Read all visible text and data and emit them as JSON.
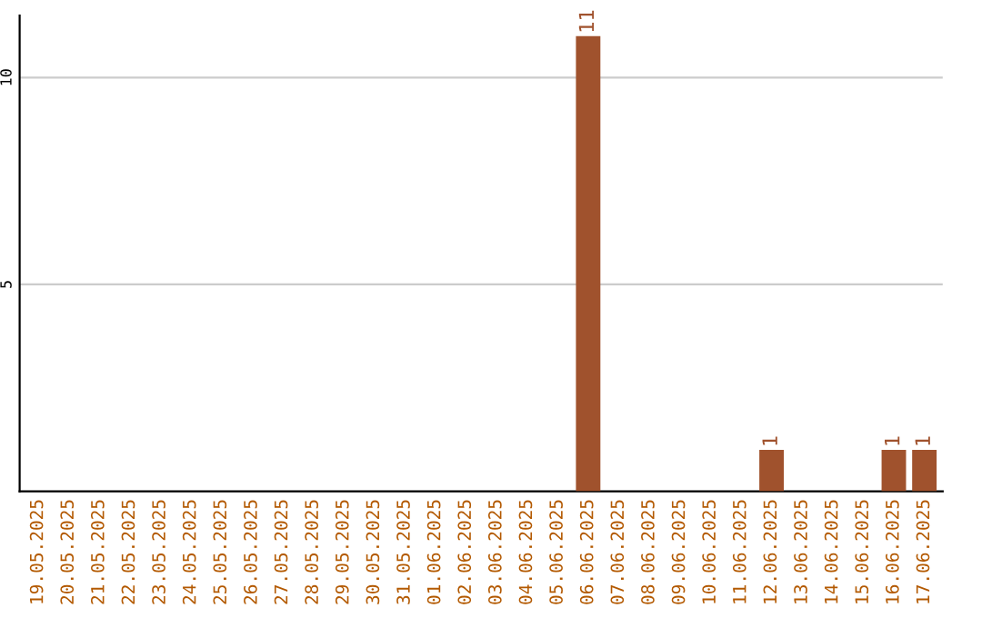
{
  "chart_data": {
    "type": "bar",
    "categories": [
      "19.05.2025",
      "20.05.2025",
      "21.05.2025",
      "22.05.2025",
      "23.05.2025",
      "24.05.2025",
      "25.05.2025",
      "26.05.2025",
      "27.05.2025",
      "28.05.2025",
      "29.05.2025",
      "30.05.2025",
      "31.05.2025",
      "01.06.2025",
      "02.06.2025",
      "03.06.2025",
      "04.06.2025",
      "05.06.2025",
      "06.06.2025",
      "07.06.2025",
      "08.06.2025",
      "09.06.2025",
      "10.06.2025",
      "11.06.2025",
      "12.06.2025",
      "13.06.2025",
      "14.06.2025",
      "15.06.2025",
      "16.06.2025",
      "17.06.2025"
    ],
    "values": [
      0,
      0,
      0,
      0,
      0,
      0,
      0,
      0,
      0,
      0,
      0,
      0,
      0,
      0,
      0,
      0,
      0,
      0,
      11,
      0,
      0,
      0,
      0,
      0,
      1,
      0,
      0,
      0,
      1,
      1
    ],
    "value_labels": [
      null,
      null,
      null,
      null,
      null,
      null,
      null,
      null,
      null,
      null,
      null,
      null,
      null,
      null,
      null,
      null,
      null,
      null,
      "11",
      null,
      null,
      null,
      null,
      null,
      "1",
      null,
      null,
      null,
      "1",
      "1"
    ],
    "color": "#a0522d",
    "ylim": [
      0,
      11.5
    ],
    "yticks": [
      5,
      10
    ],
    "grid": "y"
  }
}
